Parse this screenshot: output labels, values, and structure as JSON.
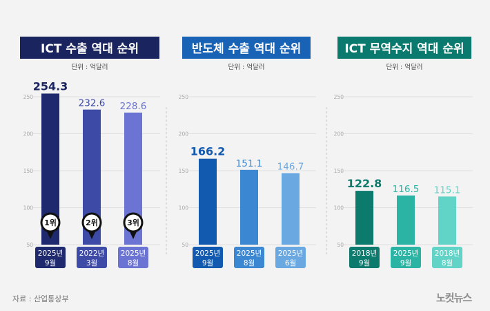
{
  "source_note": "자료 : 산업통상부",
  "logo_text": "노컷뉴스",
  "chart_data": [
    {
      "type": "bar",
      "title": "ICT 수출 역대 순위",
      "unit_label": "단위 : 억달러",
      "title_bg": "#1a2560",
      "ylim": [
        50,
        250
      ],
      "yticks": [
        50,
        100,
        150,
        200,
        250
      ],
      "grid": true,
      "categories": [
        [
          "2025년",
          "9월"
        ],
        [
          "2022년",
          "3월"
        ],
        [
          "2025년",
          "8월"
        ]
      ],
      "values": [
        254.3,
        232.6,
        228.6
      ],
      "value_labels": [
        "254.3",
        "232.6",
        "228.6"
      ],
      "rank_badges": [
        "1위",
        "2위",
        "3위"
      ],
      "colors": [
        "#1f2a6e",
        "#3d4aa6",
        "#6b74d2"
      ],
      "label_colors": [
        "#1a2560",
        "#3d4aa6",
        "#6b74d2"
      ]
    },
    {
      "type": "bar",
      "title": "반도체 수출 역대 순위",
      "unit_label": "단위 : 억달러",
      "title_bg": "#1863b5",
      "ylim": [
        50,
        250
      ],
      "yticks": [
        50,
        100,
        150,
        200,
        250
      ],
      "grid": true,
      "categories": [
        [
          "2025년",
          "9월"
        ],
        [
          "2025년",
          "8월"
        ],
        [
          "2025년",
          "6월"
        ]
      ],
      "values": [
        166.2,
        151.1,
        146.7
      ],
      "value_labels": [
        "166.2",
        "151.1",
        "146.7"
      ],
      "colors": [
        "#1259b0",
        "#3c87d2",
        "#6aa8e2"
      ],
      "label_colors": [
        "#1259b0",
        "#3c87d2",
        "#6aa8e2"
      ]
    },
    {
      "type": "bar",
      "title": "ICT 무역수지 역대 순위",
      "unit_label": "단위 : 억달러",
      "title_bg": "#0b7a6e",
      "ylim": [
        50,
        250
      ],
      "yticks": [
        50,
        100,
        150,
        200,
        250
      ],
      "grid": true,
      "categories": [
        [
          "2018년",
          "9월"
        ],
        [
          "2025년",
          "9월"
        ],
        [
          "2018년",
          "8월"
        ]
      ],
      "values": [
        122.8,
        116.5,
        115.1
      ],
      "value_labels": [
        "122.8",
        "116.5",
        "115.1"
      ],
      "colors": [
        "#0c7a6d",
        "#2bb3a4",
        "#62d3c7"
      ],
      "label_colors": [
        "#0c7a6d",
        "#2bb3a4",
        "#62d3c7"
      ]
    }
  ]
}
